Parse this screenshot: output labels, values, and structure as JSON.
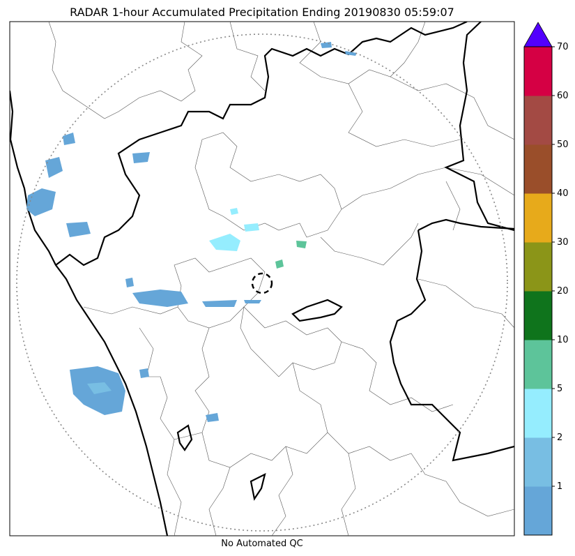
{
  "title": "RADAR 1-hour Accumulated Precipitation Ending 20190830 05:59:07",
  "footer": "No Automated QC",
  "colorbar": {
    "tick_labels": [
      "1",
      "2",
      "5",
      "10",
      "20",
      "30",
      "40",
      "50",
      "60",
      "70"
    ],
    "bins": [
      {
        "color": "#65a6d8"
      },
      {
        "color": "#78bee3"
      },
      {
        "color": "#95edfe"
      },
      {
        "color": "#5dc49a"
      },
      {
        "color": "#0f741c"
      },
      {
        "color": "#8b9518"
      },
      {
        "color": "#e7aa1b"
      },
      {
        "color": "#9a4e2a"
      },
      {
        "color": "#a34a44"
      },
      {
        "color": "#d50044"
      }
    ],
    "extend_color": "#5200fd"
  },
  "colors": {
    "boundary_major": "#000000",
    "boundary_minor": "#555555",
    "range_ring": "#888888"
  }
}
